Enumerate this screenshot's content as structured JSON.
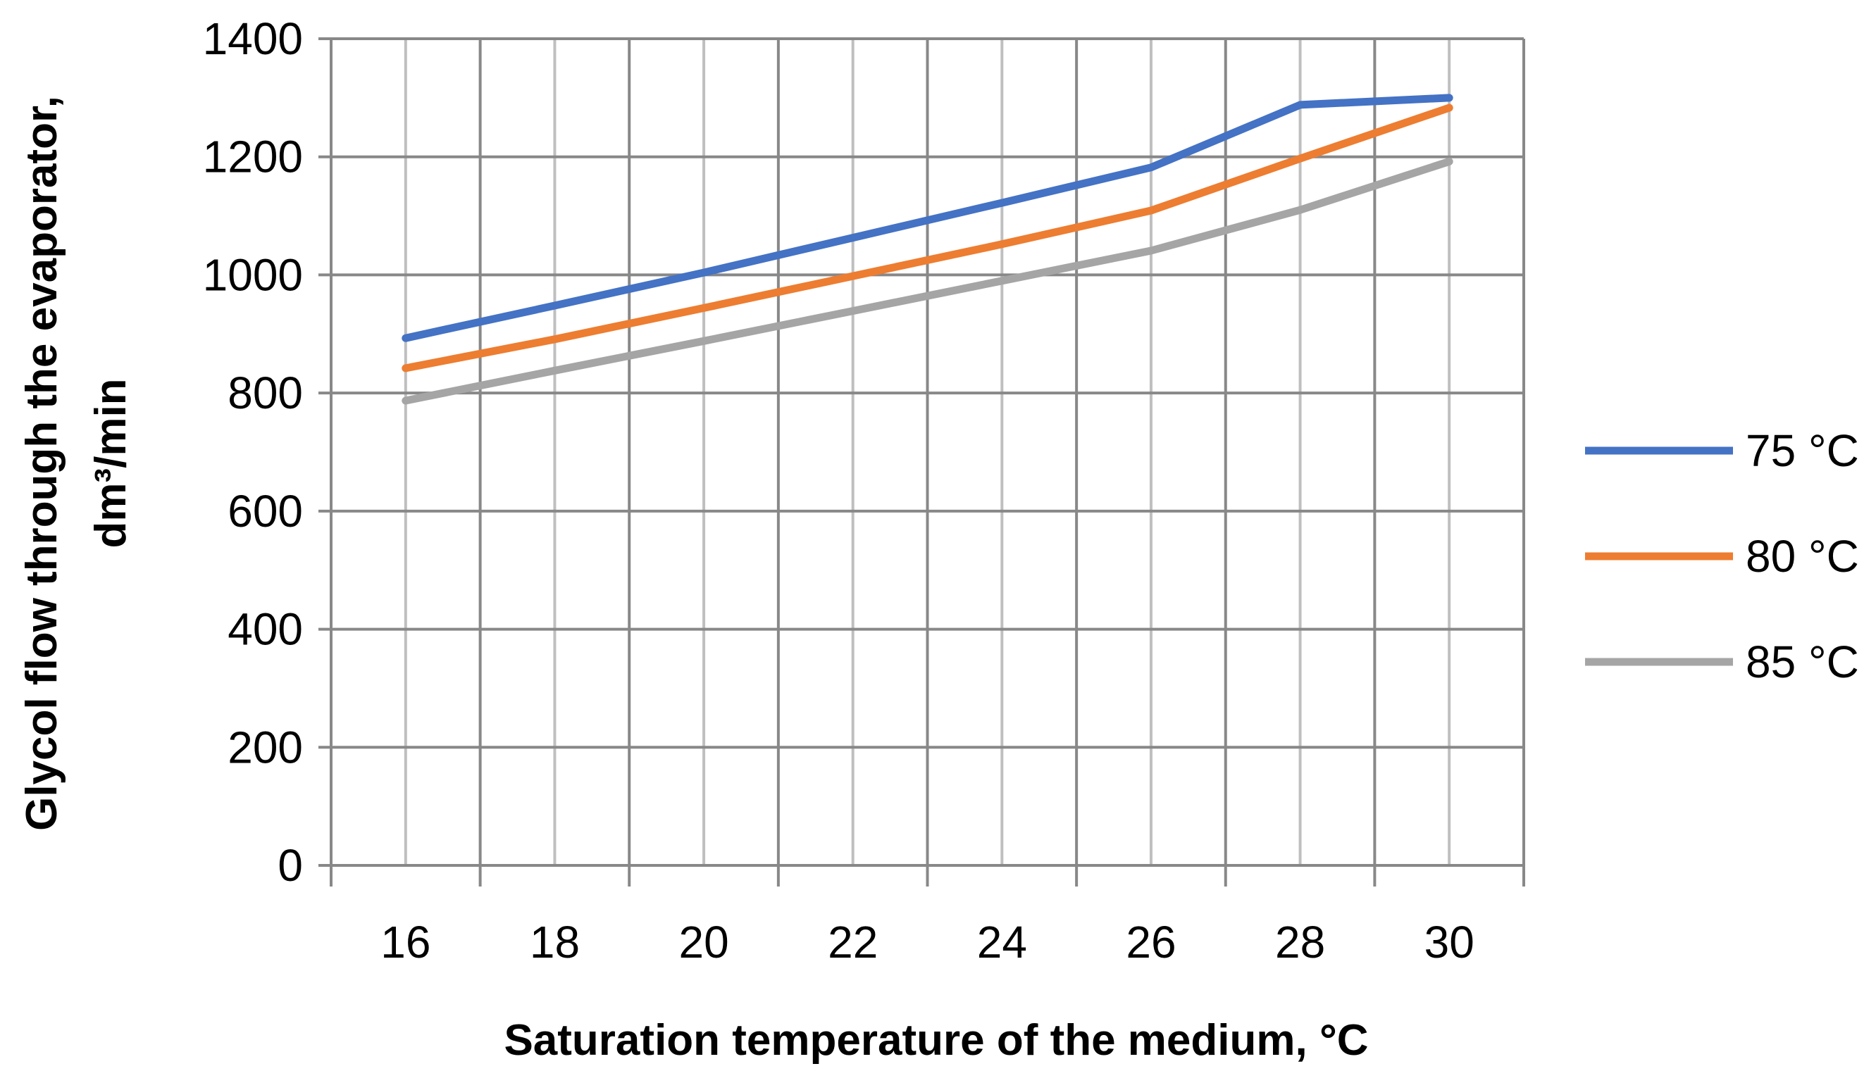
{
  "chart_data": {
    "type": "line",
    "title": "",
    "xlabel": "Saturation temperature of the medium, °C",
    "ylabel_line1": "Glycol flow through the evaporator,",
    "ylabel_line2": "dm³/min",
    "x": [
      16,
      18,
      20,
      22,
      24,
      26,
      28,
      30
    ],
    "xlim": [
      15,
      31
    ],
    "ylim": [
      0,
      1400
    ],
    "yticks": [
      0,
      200,
      400,
      600,
      800,
      1000,
      1200,
      1400
    ],
    "xticks": [
      16,
      18,
      20,
      22,
      24,
      26,
      28,
      30
    ],
    "grid": true,
    "legend_position": "right",
    "series": [
      {
        "name": "75 °C",
        "color": "#4472C4",
        "values": [
          893,
          948,
          1004,
          1063,
          1122,
          1182,
          1288,
          1300
        ]
      },
      {
        "name": "80 °C",
        "color": "#ED7D31",
        "values": [
          842,
          891,
          944,
          998,
          1052,
          1109,
          1197,
          1283
        ]
      },
      {
        "name": "85 °C",
        "color": "#A5A5A5",
        "values": [
          787,
          838,
          888,
          939,
          990,
          1041,
          1110,
          1192
        ]
      }
    ]
  },
  "colors": {
    "grid": "#888888",
    "grid_minor": "#BFBFBF"
  }
}
